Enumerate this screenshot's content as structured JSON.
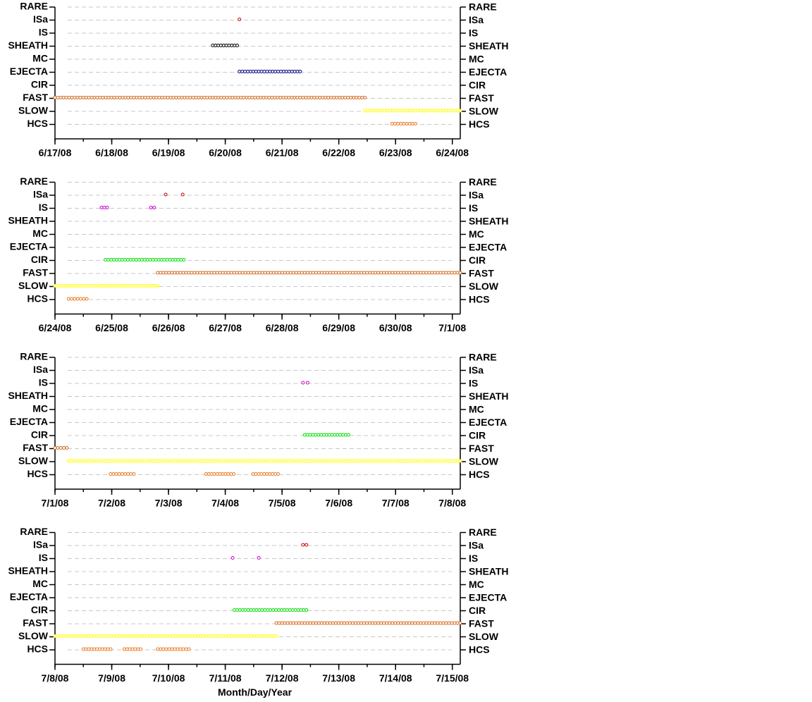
{
  "chart_data": [
    {
      "type": "timeline",
      "categories": [
        "RARE",
        "ISa",
        "IS",
        "SHEATH",
        "MC",
        "EJECTA",
        "CIR",
        "FAST",
        "SLOW",
        "HCS"
      ],
      "xlim": [
        0,
        7.14
      ],
      "xticks": [
        {
          "value": 0,
          "label": "6/17/08"
        },
        {
          "value": 1,
          "label": "6/18/08"
        },
        {
          "value": 2,
          "label": "6/19/08"
        },
        {
          "value": 3,
          "label": "6/20/08"
        },
        {
          "value": 4,
          "label": "6/21/08"
        },
        {
          "value": 5,
          "label": "6/22/08"
        },
        {
          "value": 6,
          "label": "6/23/08"
        },
        {
          "value": 7,
          "label": "6/24/08"
        }
      ],
      "grid": true,
      "series": [
        {
          "intervals": []
        },
        {
          "color": "#c00000",
          "intervals": [
            [
              3.25,
              3.25
            ]
          ]
        },
        {
          "intervals": []
        },
        {
          "color": "#000000",
          "intervals": [
            [
              2.78,
              3.21
            ]
          ]
        },
        {
          "intervals": []
        },
        {
          "color": "#000080",
          "intervals": [
            [
              3.25,
              4.32
            ]
          ]
        },
        {
          "intervals": []
        },
        {
          "color": "#d2691e",
          "intervals": [
            [
              0,
              5.46
            ]
          ]
        },
        {
          "color": "#ffff00",
          "intervals": [
            [
              5.46,
              7.14
            ]
          ]
        },
        {
          "color": "#e87820",
          "intervals": [
            [
              5.94,
              6.35
            ]
          ]
        }
      ]
    },
    {
      "type": "timeline",
      "categories": [
        "RARE",
        "ISa",
        "IS",
        "SHEATH",
        "MC",
        "EJECTA",
        "CIR",
        "FAST",
        "SLOW",
        "HCS"
      ],
      "xlim": [
        0,
        7.14
      ],
      "xticks": [
        {
          "value": 0,
          "label": "6/24/08"
        },
        {
          "value": 1,
          "label": "6/25/08"
        },
        {
          "value": 2,
          "label": "6/26/08"
        },
        {
          "value": 3,
          "label": "6/27/08"
        },
        {
          "value": 4,
          "label": "6/28/08"
        },
        {
          "value": 5,
          "label": "6/29/08"
        },
        {
          "value": 6,
          "label": "6/30/08"
        },
        {
          "value": 7,
          "label": "7/1/08"
        }
      ],
      "grid": true,
      "series": [
        {
          "intervals": []
        },
        {
          "color": "#c00000",
          "intervals": [
            [
              1.95,
              1.95
            ],
            [
              2.25,
              2.25
            ]
          ]
        },
        {
          "color": "#cc00cc",
          "intervals": [
            [
              0.82,
              0.92
            ],
            [
              1.69,
              1.75
            ]
          ]
        },
        {
          "intervals": []
        },
        {
          "intervals": []
        },
        {
          "intervals": []
        },
        {
          "color": "#00dd00",
          "intervals": [
            [
              0.89,
              2.27
            ]
          ]
        },
        {
          "color": "#d2691e",
          "intervals": [
            [
              1.81,
              7.14
            ]
          ]
        },
        {
          "color": "#ffff00",
          "intervals": [
            [
              0,
              1.81
            ]
          ]
        },
        {
          "color": "#e87820",
          "intervals": [
            [
              0.24,
              0.56
            ]
          ]
        }
      ]
    },
    {
      "type": "timeline",
      "categories": [
        "RARE",
        "ISa",
        "IS",
        "SHEATH",
        "MC",
        "EJECTA",
        "CIR",
        "FAST",
        "SLOW",
        "HCS"
      ],
      "xlim": [
        0,
        7.14
      ],
      "xticks": [
        {
          "value": 0,
          "label": "7/1/08"
        },
        {
          "value": 1,
          "label": "7/2/08"
        },
        {
          "value": 2,
          "label": "7/3/08"
        },
        {
          "value": 3,
          "label": "7/4/08"
        },
        {
          "value": 4,
          "label": "7/5/08"
        },
        {
          "value": 5,
          "label": "7/6/08"
        },
        {
          "value": 6,
          "label": "7/7/08"
        },
        {
          "value": 7,
          "label": "7/8/08"
        }
      ],
      "grid": true,
      "series": [
        {
          "intervals": []
        },
        {
          "intervals": []
        },
        {
          "color": "#cc00cc",
          "intervals": [
            [
              4.37,
              4.37
            ],
            [
              4.45,
              4.45
            ]
          ]
        },
        {
          "intervals": []
        },
        {
          "intervals": []
        },
        {
          "intervals": []
        },
        {
          "color": "#00dd00",
          "intervals": [
            [
              4.4,
              5.17
            ]
          ]
        },
        {
          "color": "#d2691e",
          "intervals": [
            [
              0,
              0.21
            ]
          ]
        },
        {
          "color": "#ffff00",
          "intervals": [
            [
              0.24,
              7.14
            ]
          ]
        },
        {
          "color": "#e87820",
          "intervals": [
            [
              0.98,
              1.39
            ],
            [
              2.66,
              3.15
            ],
            [
              3.49,
              3.93
            ]
          ]
        }
      ]
    },
    {
      "type": "timeline",
      "categories": [
        "RARE",
        "ISa",
        "IS",
        "SHEATH",
        "MC",
        "EJECTA",
        "CIR",
        "FAST",
        "SLOW",
        "HCS"
      ],
      "xlim": [
        0,
        7.14
      ],
      "xticks": [
        {
          "value": 0,
          "label": "7/8/08"
        },
        {
          "value": 1,
          "label": "7/9/08"
        },
        {
          "value": 2,
          "label": "7/10/08"
        },
        {
          "value": 3,
          "label": "7/11/08"
        },
        {
          "value": 4,
          "label": "7/12/08"
        },
        {
          "value": 5,
          "label": "7/13/08"
        },
        {
          "value": 6,
          "label": "7/14/08"
        },
        {
          "value": 7,
          "label": "7/15/08"
        }
      ],
      "x_label": "Month/Day/Year",
      "grid": true,
      "series": [
        {
          "intervals": []
        },
        {
          "color": "#c00000",
          "intervals": [
            [
              4.37,
              4.43
            ]
          ]
        },
        {
          "color": "#cc00cc",
          "intervals": [
            [
              3.13,
              3.13
            ],
            [
              3.59,
              3.59
            ]
          ]
        },
        {
          "intervals": []
        },
        {
          "intervals": []
        },
        {
          "intervals": []
        },
        {
          "color": "#00dd00",
          "intervals": [
            [
              3.16,
              4.43
            ]
          ]
        },
        {
          "color": "#d2691e",
          "intervals": [
            [
              3.9,
              7.14
            ]
          ]
        },
        {
          "color": "#ffff00",
          "intervals": [
            [
              0,
              3.9
            ]
          ]
        },
        {
          "color": "#e87820",
          "intervals": [
            [
              0.5,
              0.98
            ],
            [
              1.22,
              1.51
            ],
            [
              1.81,
              2.36
            ]
          ]
        }
      ]
    }
  ]
}
